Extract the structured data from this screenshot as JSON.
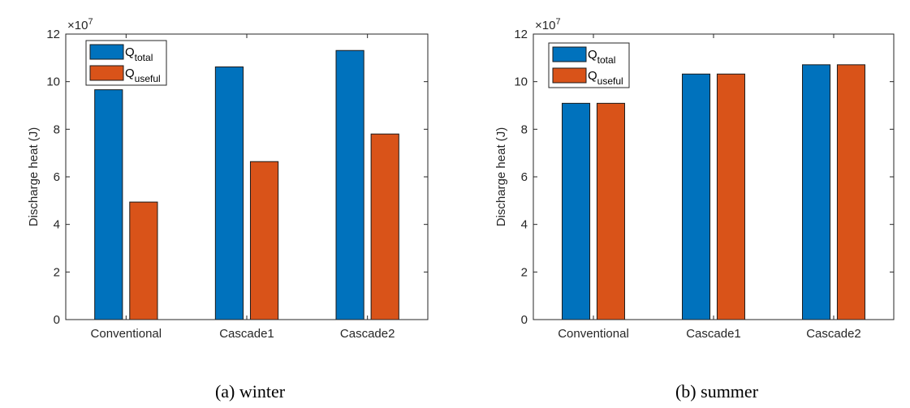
{
  "chart_data": [
    {
      "type": "bar",
      "title": "",
      "caption": "(a)  winter",
      "xlabel": "",
      "ylabel": "Discharge heat (J)",
      "y_multiplier": "×10",
      "y_multiplier_exp": "7",
      "ylim": [
        0,
        12
      ],
      "yticks": [
        0,
        2,
        4,
        6,
        8,
        10,
        12
      ],
      "categories": [
        "Conventional",
        "Cascade1",
        "Cascade2"
      ],
      "legend_placement": "top-left",
      "series": [
        {
          "name": "Q_total",
          "label_main": "Q",
          "label_sub": "total",
          "color": "#0072BD",
          "values": [
            9.66,
            10.62,
            11.31
          ]
        },
        {
          "name": "Q_useful",
          "label_main": "Q",
          "label_sub": "useful",
          "color": "#D95319",
          "values": [
            4.94,
            6.64,
            7.8
          ]
        }
      ]
    },
    {
      "type": "bar",
      "title": "",
      "caption": "(b)  summer",
      "xlabel": "",
      "ylabel": "Discharge heat (J)",
      "y_multiplier": "×10",
      "y_multiplier_exp": "7",
      "ylim": [
        0,
        12
      ],
      "yticks": [
        0,
        2,
        4,
        6,
        8,
        10,
        12
      ],
      "categories": [
        "Conventional",
        "Cascade1",
        "Cascade2"
      ],
      "legend_placement": "top-left",
      "series": [
        {
          "name": "Q_total",
          "label_main": "Q",
          "label_sub": "total",
          "color": "#0072BD",
          "values": [
            9.09,
            10.32,
            10.71
          ]
        },
        {
          "name": "Q_useful",
          "label_main": "Q",
          "label_sub": "useful",
          "color": "#D95319",
          "values": [
            9.09,
            10.32,
            10.71
          ]
        }
      ]
    }
  ]
}
